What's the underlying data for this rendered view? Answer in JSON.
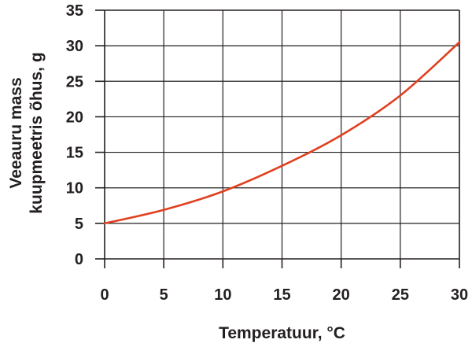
{
  "chart_data": {
    "type": "line",
    "xlabel": "Temperatuur, °C",
    "ylabel_lines": [
      "Veeauru mass",
      "kuupmeetris õhus, g"
    ],
    "xlim": [
      0,
      30
    ],
    "ylim": [
      0,
      35
    ],
    "x_ticks": [
      0,
      5,
      10,
      15,
      20,
      25,
      30
    ],
    "y_ticks": [
      0,
      5,
      10,
      15,
      20,
      25,
      30,
      35
    ],
    "grid": true,
    "series": [
      {
        "color": "#e0401f",
        "x": [
          0,
          5,
          10,
          15,
          20,
          25,
          30
        ],
        "y": [
          5.0,
          6.9,
          9.5,
          13.1,
          17.4,
          23.0,
          30.5
        ]
      }
    ]
  }
}
